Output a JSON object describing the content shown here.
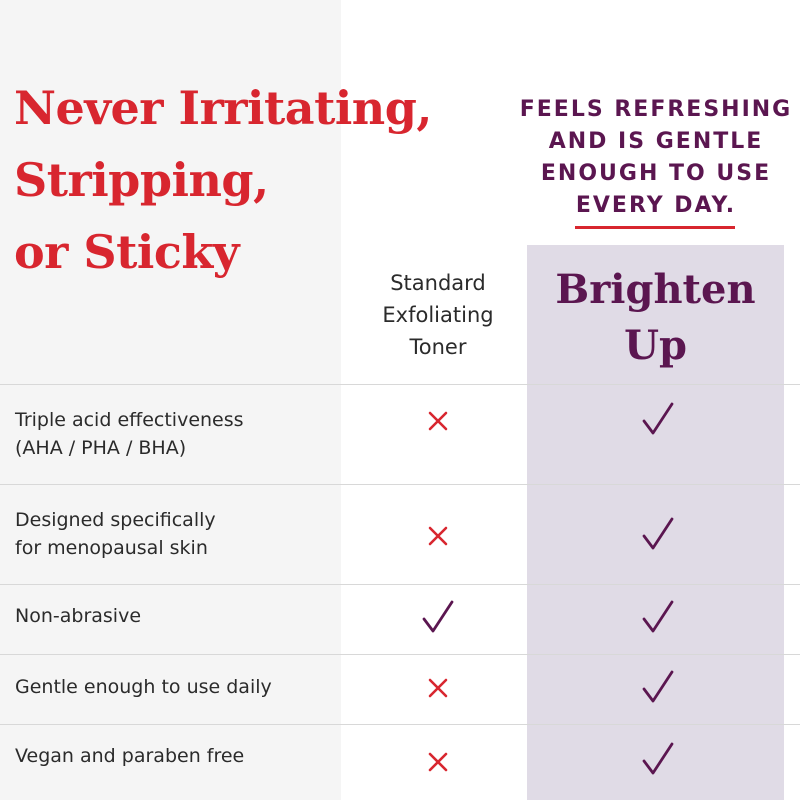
{
  "headline": {
    "lines": [
      "Never Irritating,",
      "Stripping,",
      "or Sticky"
    ]
  },
  "tagline": {
    "lines": [
      "FEELS REFRESHING",
      "AND IS GENTLE",
      "ENOUGH TO USE",
      "EVERY DAY."
    ]
  },
  "columns": {
    "competitor": {
      "lines": [
        "Standard",
        "Exfoliating",
        "Toner"
      ]
    },
    "brand": {
      "lines": [
        "Brighten",
        "Up"
      ]
    }
  },
  "colors": {
    "accent_red": "#d8262f",
    "brand_purple": "#5b1650",
    "brand_column_bg": "#e0dbe6",
    "left_panel_bg": "#f5f5f5"
  },
  "rows": [
    {
      "label": "Triple acid effectiveness\n(AHA / PHA / BHA)",
      "competitor": "cross-icon",
      "brand": "check-icon"
    },
    {
      "label": "Designed specifically\nfor menopausal skin",
      "competitor": "cross-icon",
      "brand": "check-icon"
    },
    {
      "label": "Non-abrasive",
      "competitor": "check-icon",
      "brand": "check-icon"
    },
    {
      "label": "Gentle enough to use daily",
      "competitor": "cross-icon",
      "brand": "check-icon"
    },
    {
      "label": "Vegan and paraben free",
      "competitor": "cross-icon",
      "brand": "check-icon"
    }
  ]
}
